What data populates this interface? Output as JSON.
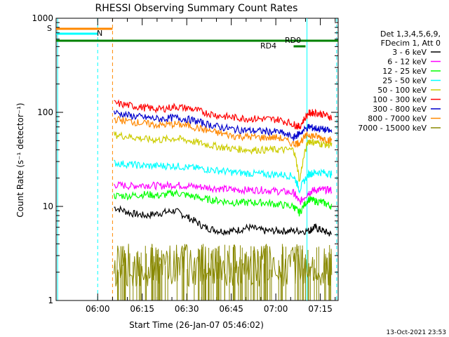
{
  "chart_data": {
    "type": "line",
    "title": "RHESSI Observing Summary Count Rates",
    "xlabel": "Start Time (26-Jan-07 05:46:02)",
    "ylabel": "Count Rate (s⁻¹ detector⁻¹)",
    "y_scale": "log",
    "ylim": [
      1,
      1000
    ],
    "xlim_minutes": [
      0,
      40.0
    ],
    "x_tick_minutes": [
      13.97,
      28.97,
      43.97,
      58.97,
      73.97,
      88.97
    ],
    "x_tick_labels": [
      "06:00",
      "06:15",
      "06:30",
      "06:45",
      "07:00",
      "07:15"
    ],
    "y_ticks": [
      1,
      10,
      100,
      1000
    ],
    "y_tick_labels": [
      "1",
      "10",
      "100",
      "1000"
    ],
    "x_range_minutes": [
      0,
      95
    ],
    "data_start_minute": 19.5,
    "footer": "13-Oct-2021 23:53",
    "legend_header": [
      "Det 1,3,4,5,6,9,",
      "FDecim 1, Att 0"
    ],
    "legend_dash": "—",
    "series": [
      {
        "name": "3 - 6 keV",
        "color": "#000000",
        "x": [
          19.5,
          25,
          30,
          35,
          40,
          45,
          50,
          55,
          60,
          65,
          70,
          75,
          80,
          85,
          87,
          90,
          93
        ],
        "y": [
          9.8,
          8.5,
          8,
          8.5,
          9,
          7.5,
          6,
          5.5,
          5.5,
          6,
          5.5,
          5.5,
          5.5,
          5.5,
          6,
          5.5,
          5
        ]
      },
      {
        "name": "6 - 12 keV",
        "color": "#ff00ff",
        "x": [
          19.5,
          25,
          30,
          35,
          40,
          45,
          50,
          55,
          60,
          65,
          70,
          75,
          80,
          82,
          85,
          87,
          90,
          93
        ],
        "y": [
          17,
          16.5,
          17,
          16.5,
          17,
          16.5,
          16,
          15.5,
          15,
          15,
          15,
          14.5,
          14,
          11,
          14,
          15,
          15,
          15
        ]
      },
      {
        "name": "12 - 25 keV",
        "color": "#00ff00",
        "x": [
          19.5,
          25,
          30,
          35,
          40,
          45,
          50,
          55,
          60,
          65,
          70,
          75,
          80,
          82,
          85,
          87,
          90,
          93
        ],
        "y": [
          13,
          13,
          13.5,
          13,
          14,
          13,
          12,
          11.5,
          11,
          11,
          11,
          10.5,
          10,
          8.5,
          12,
          11.5,
          11,
          10
        ]
      },
      {
        "name": "25 - 50 keV",
        "color": "#00ffff",
        "x": [
          19.5,
          25,
          30,
          35,
          40,
          45,
          50,
          55,
          60,
          65,
          70,
          75,
          80,
          82,
          85,
          87,
          90,
          93
        ],
        "y": [
          29,
          28,
          27,
          27,
          27,
          26,
          25,
          24,
          23,
          22.5,
          22,
          22,
          21,
          15,
          22,
          23,
          23,
          22
        ]
      },
      {
        "name": "50 - 100 keV",
        "color": "#cccc00",
        "x": [
          19.5,
          25,
          30,
          35,
          40,
          45,
          50,
          55,
          60,
          65,
          70,
          75,
          80,
          82,
          85,
          87,
          90,
          93
        ],
        "y": [
          58,
          55,
          52,
          51,
          53,
          50,
          46,
          43,
          41,
          40,
          40,
          40,
          40,
          18,
          50,
          48,
          46,
          45
        ]
      },
      {
        "name": "100 - 300 keV",
        "color": "#ff0000",
        "x": [
          19.5,
          25,
          30,
          35,
          40,
          45,
          50,
          55,
          60,
          65,
          70,
          75,
          80,
          82,
          85,
          87,
          90,
          93
        ],
        "y": [
          125,
          118,
          112,
          108,
          115,
          110,
          100,
          92,
          88,
          86,
          85,
          84,
          75,
          70,
          98,
          100,
          95,
          88
        ]
      },
      {
        "name": "300 - 800 keV",
        "color": "#0000cc",
        "x": [
          19.5,
          25,
          30,
          35,
          40,
          45,
          50,
          55,
          60,
          65,
          70,
          75,
          80,
          82,
          85,
          87,
          90,
          93
        ],
        "y": [
          100,
          92,
          88,
          85,
          88,
          84,
          76,
          70,
          66,
          64,
          63,
          62,
          54,
          60,
          70,
          68,
          66,
          62
        ]
      },
      {
        "name": "800 - 7000 keV",
        "color": "#ff8800",
        "x": [
          19.5,
          25,
          30,
          35,
          40,
          45,
          50,
          55,
          60,
          65,
          70,
          75,
          80,
          82,
          85,
          87,
          90,
          93
        ],
        "y": [
          85,
          80,
          76,
          73,
          75,
          72,
          65,
          60,
          56,
          55,
          54,
          54,
          46,
          48,
          58,
          56,
          53,
          50
        ]
      },
      {
        "name": "7000 - 15000 keV",
        "color": "#888800",
        "x": [
          19.5,
          25,
          30,
          35,
          40,
          45,
          50,
          55,
          60,
          65,
          70,
          75,
          80,
          85,
          90,
          93
        ],
        "y": [
          2,
          2,
          2,
          2.5,
          2.5,
          2.5,
          3,
          3,
          2.5,
          2,
          2,
          2,
          2,
          2.5,
          3,
          2.5
        ]
      }
    ],
    "flags": {
      "S": {
        "label": "S",
        "color": "#ff8800",
        "x_range": [
          0,
          19.0
        ]
      },
      "N": {
        "label": "N",
        "color": "#00ffff",
        "x_range": [
          0,
          14.0
        ]
      },
      "SAA_bar": {
        "label": "RD0",
        "color": "#008000",
        "x_range": [
          0,
          95
        ]
      },
      "RD4": {
        "label": "RD4",
        "color": "#008000",
        "x_range": [
          80,
          84
        ]
      },
      "RD0_top": {
        "label": "RD0",
        "color": "#008000"
      }
    },
    "vertical_lines": [
      {
        "x": 0.5,
        "color": "#00ffff",
        "style": "solid"
      },
      {
        "x": 14.0,
        "color": "#00ffff",
        "style": "dashed"
      },
      {
        "x": 19.0,
        "color": "#ff8800",
        "style": "dashed"
      },
      {
        "x": 84.5,
        "color": "#00ffff",
        "style": "solid"
      },
      {
        "x": 94.5,
        "color": "#00ffff",
        "style": "dashed"
      }
    ]
  }
}
